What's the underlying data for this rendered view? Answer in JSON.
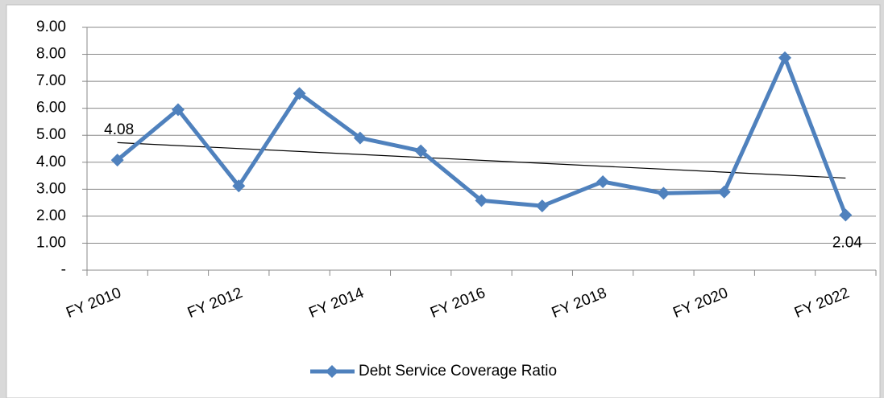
{
  "chart_data": {
    "type": "line",
    "categories": [
      "FY 2010",
      null,
      "FY 2012",
      null,
      "FY 2014",
      null,
      "FY 2016",
      null,
      "FY 2018",
      null,
      "FY 2020",
      null,
      "FY 2022"
    ],
    "series": [
      {
        "name": "Debt Service Coverage Ratio",
        "color": "#4f81bd",
        "values": [
          4.08,
          5.95,
          3.12,
          6.55,
          4.9,
          4.42,
          2.58,
          2.38,
          3.28,
          2.85,
          2.9,
          7.87,
          2.04
        ],
        "value_labels": [
          "4.08",
          null,
          null,
          null,
          null,
          null,
          null,
          null,
          null,
          null,
          null,
          null,
          "2.04"
        ]
      }
    ],
    "ylim": [
      0,
      9
    ],
    "yticks": [
      {
        "value": 0,
        "label": "-"
      },
      {
        "value": 1,
        "label": "1.00"
      },
      {
        "value": 2,
        "label": "2.00"
      },
      {
        "value": 3,
        "label": "3.00"
      },
      {
        "value": 4,
        "label": "4.00"
      },
      {
        "value": 5,
        "label": "5.00"
      },
      {
        "value": 6,
        "label": "6.00"
      },
      {
        "value": 7,
        "label": "7.00"
      },
      {
        "value": 8,
        "label": "8.00"
      },
      {
        "value": 9,
        "label": "9.00"
      }
    ],
    "grid": true,
    "trendline": {
      "type": "linear",
      "color": "#000000"
    },
    "legend": "bottom"
  }
}
